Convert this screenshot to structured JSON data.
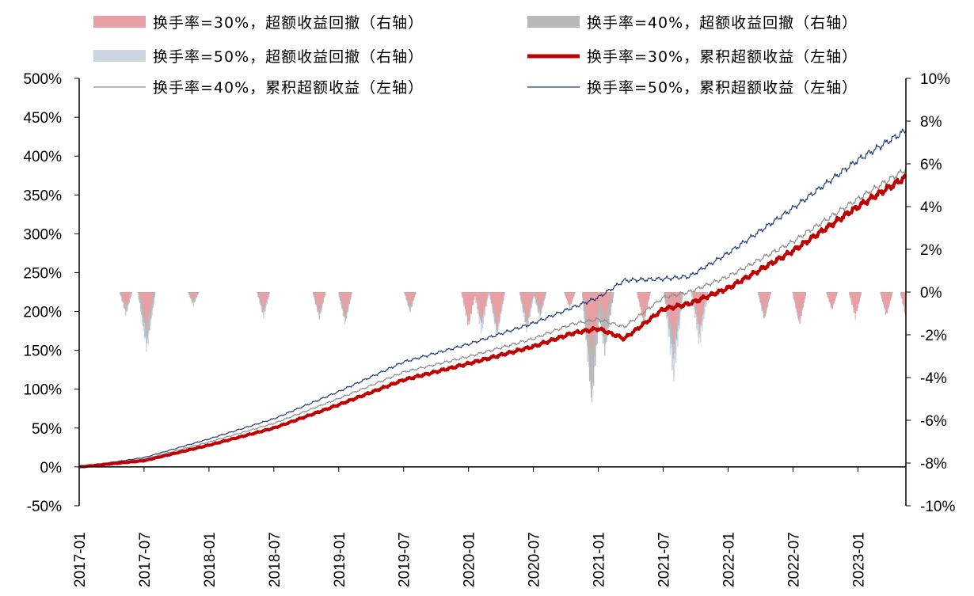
{
  "chart_data": {
    "type": "line+bar",
    "title": "",
    "xlabel": "",
    "ylabel": "",
    "left_axis": {
      "ylim": [
        -0.5,
        5.0
      ],
      "step": 0.5,
      "tick_labels": [
        "-50%",
        "0%",
        "50%",
        "100%",
        "150%",
        "200%",
        "250%",
        "300%",
        "350%",
        "400%",
        "450%",
        "500%"
      ]
    },
    "right_axis": {
      "ylim": [
        -10,
        10
      ],
      "step": 2,
      "tick_labels": [
        "-10%",
        "-8%",
        "-6%",
        "-4%",
        "-2%",
        "0%",
        "2%",
        "4%",
        "6%",
        "8%",
        "10%"
      ]
    },
    "x_range": [
      "2017-01",
      "2023-05"
    ],
    "x_tick_labels": [
      "2017-01",
      "2017-07",
      "2018-01",
      "2018-07",
      "2019-01",
      "2019-07",
      "2020-01",
      "2020-07",
      "2021-01",
      "2021-07",
      "2022-01",
      "2022-07",
      "2023-01"
    ],
    "legend": [
      {
        "key": "dd30",
        "label": "换手率=30%，超额收益回撤（右轴）",
        "kind": "bar",
        "color": "#e8a0a4"
      },
      {
        "key": "dd40",
        "label": "换手率=40%，超额收益回撤（右轴）",
        "kind": "bar",
        "color": "#b8b8b8"
      },
      {
        "key": "dd50",
        "label": "换手率=50%，超额收益回撤（右轴）",
        "kind": "bar",
        "color": "#ccd5e2"
      },
      {
        "key": "cum30",
        "label": "换手率=30%，累积超额收益（左轴）",
        "kind": "line",
        "color": "#c00000"
      },
      {
        "key": "cum40",
        "label": "换手率=40%，累积超额收益（左轴）",
        "kind": "line",
        "color": "#8c8c8c"
      },
      {
        "key": "cum50",
        "label": "换手率=50%，累积超额收益（左轴）",
        "kind": "line",
        "color": "#1f3c78"
      }
    ],
    "series": [
      {
        "name": "换手率=30%，累积超额收益（左轴）",
        "axis": "left",
        "t": [
          0,
          0.5,
          1,
          1.5,
          2,
          2.5,
          3,
          3.5,
          3.8,
          4,
          4.2,
          4.5,
          4.7,
          5,
          5.5,
          6,
          6.37
        ],
        "values": [
          0,
          0.08,
          0.28,
          0.5,
          0.8,
          1.12,
          1.33,
          1.55,
          1.72,
          1.78,
          1.65,
          2.03,
          2.1,
          2.3,
          2.78,
          3.35,
          3.73
        ]
      },
      {
        "name": "换手率=40%，累积超额收益（左轴）",
        "axis": "left",
        "t": [
          0,
          0.5,
          1,
          1.5,
          2,
          2.5,
          3,
          3.5,
          3.8,
          4,
          4.2,
          4.5,
          4.7,
          5,
          5.5,
          6,
          6.37
        ],
        "values": [
          0,
          0.1,
          0.32,
          0.56,
          0.88,
          1.22,
          1.42,
          1.65,
          1.84,
          1.9,
          1.8,
          2.18,
          2.25,
          2.45,
          2.9,
          3.45,
          3.83
        ]
      },
      {
        "name": "换手率=50%，累积超额收益（左轴）",
        "axis": "left",
        "t": [
          0,
          0.5,
          1,
          1.5,
          2,
          2.5,
          3,
          3.5,
          3.8,
          4,
          4.2,
          4.5,
          4.7,
          5,
          5.5,
          6,
          6.37
        ],
        "values": [
          0,
          0.12,
          0.36,
          0.62,
          0.97,
          1.35,
          1.58,
          1.85,
          2.05,
          2.18,
          2.4,
          2.42,
          2.45,
          2.75,
          3.33,
          3.95,
          4.33
        ]
      }
    ],
    "drawdown_events": [
      {
        "t": 0.36,
        "dd30": -0.8,
        "dd40": -1.0,
        "dd50": -1.2
      },
      {
        "t": 0.52,
        "dd30": -1.8,
        "dd40": -2.6,
        "dd50": -2.9
      },
      {
        "t": 0.88,
        "dd30": -0.4,
        "dd40": -0.6,
        "dd50": -0.7
      },
      {
        "t": 1.42,
        "dd30": -0.9,
        "dd40": -1.1,
        "dd50": -1.3
      },
      {
        "t": 1.85,
        "dd30": -1.0,
        "dd40": -1.3,
        "dd50": -1.2
      },
      {
        "t": 2.05,
        "dd30": -1.2,
        "dd40": -1.5,
        "dd50": -1.6
      },
      {
        "t": 2.55,
        "dd30": -0.8,
        "dd40": -1.0,
        "dd50": -0.9
      },
      {
        "t": 3.0,
        "dd30": -1.8,
        "dd40": -1.4,
        "dd50": -1.2
      },
      {
        "t": 3.1,
        "dd30": -1.5,
        "dd40": -1.6,
        "dd50": -2.1
      },
      {
        "t": 3.22,
        "dd30": -1.8,
        "dd40": -2.0,
        "dd50": -2.3
      },
      {
        "t": 3.45,
        "dd30": -1.5,
        "dd40": -1.8,
        "dd50": -2.0
      },
      {
        "t": 3.55,
        "dd30": -0.9,
        "dd40": -1.2,
        "dd50": -1.4
      },
      {
        "t": 3.78,
        "dd30": -0.8,
        "dd40": -0.7,
        "dd50": -0.6
      },
      {
        "t": 3.95,
        "dd30": -3.0,
        "dd40": -5.5,
        "dd50": -5.0
      },
      {
        "t": 4.05,
        "dd30": -1.5,
        "dd40": -3.0,
        "dd50": -2.6
      },
      {
        "t": 4.35,
        "dd30": -1.6,
        "dd40": -1.4,
        "dd50": -1.3
      },
      {
        "t": 4.58,
        "dd30": -2.5,
        "dd40": -3.3,
        "dd50": -4.5
      },
      {
        "t": 4.78,
        "dd30": -1.8,
        "dd40": -2.0,
        "dd50": -2.7
      },
      {
        "t": 5.28,
        "dd30": -1.2,
        "dd40": -1.4,
        "dd50": -1.3
      },
      {
        "t": 5.55,
        "dd30": -1.5,
        "dd40": -1.6,
        "dd50": -1.4
      },
      {
        "t": 5.8,
        "dd30": -0.9,
        "dd40": -0.8,
        "dd50": -0.7
      },
      {
        "t": 5.98,
        "dd30": -1.3,
        "dd40": -1.1,
        "dd50": -1.0
      },
      {
        "t": 6.22,
        "dd30": -1.2,
        "dd40": -1.1,
        "dd50": -1.0
      },
      {
        "t": 6.38,
        "dd30": -1.6,
        "dd40": -1.4,
        "dd50": -1.2
      }
    ]
  }
}
